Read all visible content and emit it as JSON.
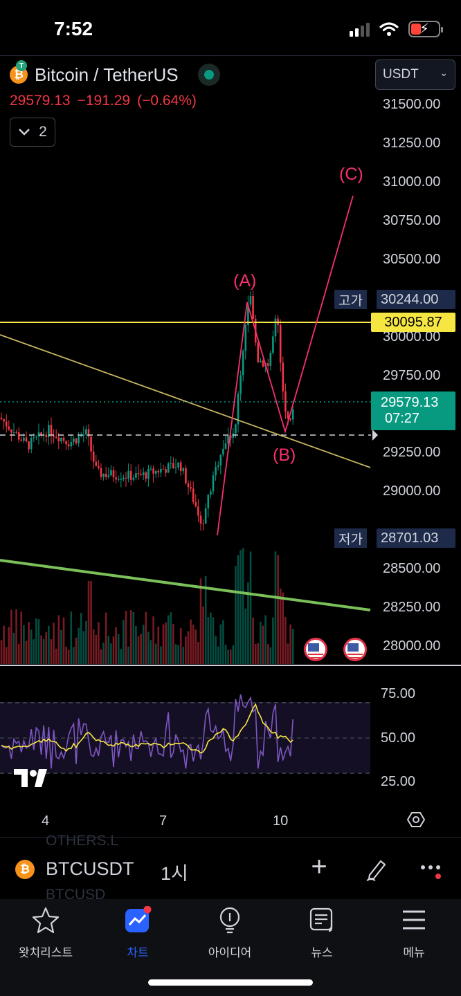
{
  "status_bar": {
    "time": "7:52"
  },
  "header": {
    "symbol_name": "Bitcoin / TetherUS",
    "last_price": "29579.13",
    "change": "−191.29",
    "change_pct": "(−0.64%)",
    "indicator_count": "2",
    "currency": "USDT"
  },
  "price_axis": {
    "labels": [
      "31500.00",
      "31250.00",
      "31000.00",
      "30750.00",
      "30500.00",
      "30000.00",
      "29750.00",
      "29250.00",
      "29000.00",
      "28500.00",
      "28250.00",
      "28000.00"
    ],
    "high_name": "고가",
    "high_value": "30244.00",
    "line_value": "30095.87",
    "current_price": "29579.13",
    "countdown": "07:27",
    "low_name": "저가",
    "low_value": "28701.03"
  },
  "annotations": {
    "a": "(A)",
    "b": "(B)",
    "c": "(C)"
  },
  "rsi_axis": {
    "labels": [
      "75.00",
      "50.00",
      "25.00"
    ]
  },
  "time_axis": {
    "labels": [
      "4",
      "7",
      "10"
    ]
  },
  "ghost_text": {
    "top": "OTHERS.L",
    "bottom": "BTCUSD"
  },
  "toolbar": {
    "symbol": "BTCUSDT",
    "interval": "1시"
  },
  "nav": {
    "items": [
      {
        "label": "왓치리스트",
        "icon": "star-icon"
      },
      {
        "label": "차트",
        "icon": "chart-icon"
      },
      {
        "label": "아이디어",
        "icon": "lightbulb-icon"
      },
      {
        "label": "뉴스",
        "icon": "news-icon"
      },
      {
        "label": "메뉴",
        "icon": "menu-icon"
      }
    ],
    "active_index": 1
  },
  "colors": {
    "up": "#089981",
    "down": "#f23645",
    "wave": "#f7306d",
    "hline": "#f6e642",
    "trend": "#c8b560",
    "support": "#7cc05a",
    "rsi": "#7e57c2",
    "rsi_ma": "#f6e642"
  }
}
